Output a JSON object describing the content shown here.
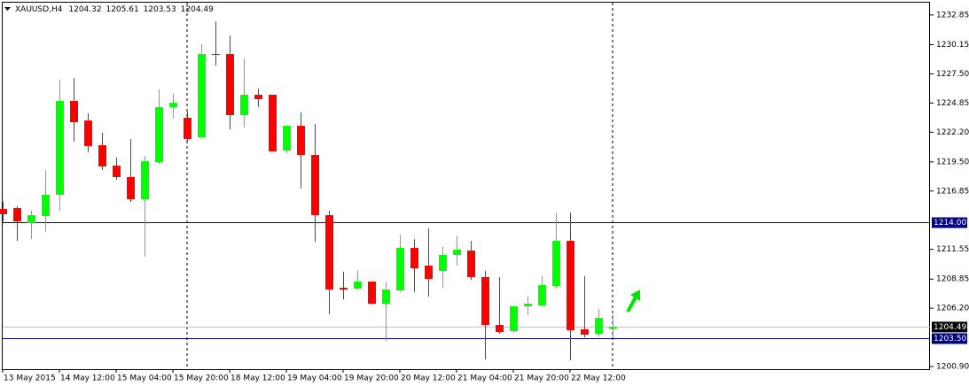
{
  "chart_data": {
    "type": "candlestick",
    "title": "XAUUSD,H4",
    "header_ohlc": [
      1204.32,
      1205.61,
      1203.53,
      1204.49
    ],
    "categories": [
      "13 May 2015",
      null,
      null,
      null,
      "14 May 12:00",
      null,
      null,
      null,
      "15 May 04:00",
      null,
      null,
      null,
      "15 May 20:00",
      null,
      null,
      null,
      "18 May 12:00",
      null,
      null,
      null,
      "19 May 04:00",
      null,
      null,
      null,
      "19 May 20:00",
      null,
      null,
      null,
      "20 May 12:00",
      null,
      null,
      null,
      "21 May 04:00",
      null,
      null,
      null,
      "21 May 20:00",
      null,
      null,
      null,
      "22 May 12:00",
      null,
      null,
      null
    ],
    "open": [
      1215.22,
      1215.3,
      1213.93,
      1214.58,
      1216.51,
      1225.04,
      1223.26,
      1221.01,
      1219.16,
      1218.12,
      1216.11,
      1219.48,
      1224.47,
      1223.51,
      1221.74,
      1229.3,
      1229.3,
      1223.75,
      1225.6,
      1225.6,
      1220.53,
      1222.78,
      1220.13,
      1214.66,
      1208.06,
      1207.98,
      1208.62,
      1206.61,
      1207.82,
      1211.68,
      1210.07,
      1209.59,
      1211.04,
      1211.44,
      1209.03,
      1204.68,
      1204.12,
      1206.37,
      1206.45,
      1208.22,
      1212.32,
      1204.28,
      1203.88,
      1204.32
    ],
    "high": [
      1215.86,
      1215.46,
      1215.06,
      1218.76,
      1226.97,
      1227.13,
      1223.91,
      1222.14,
      1219.89,
      1221.58,
      1220.05,
      1226.08,
      1225.68,
      1224.07,
      1230.18,
      1232.28,
      1230.99,
      1228.9,
      1226.16,
      1225.6,
      1222.78,
      1223.99,
      1222.94,
      1215.06,
      1209.51,
      1209.67,
      1208.62,
      1208.62,
      1212.89,
      1212.48,
      1213.45,
      1211.76,
      1212.81,
      1212.32,
      1209.59,
      1209.03,
      1206.37,
      1207.26,
      1209.11,
      1214.9,
      1214.9,
      1209.11,
      1206.13,
      1205.61
    ],
    "low": [
      1214.09,
      1212.32,
      1212.48,
      1213.13,
      1215.06,
      1221.33,
      1220.37,
      1218.76,
      1217.88,
      1215.86,
      1210.88,
      1219.32,
      1223.43,
      1221.33,
      1221.74,
      1228.25,
      1222.46,
      1222.62,
      1224.47,
      1220.45,
      1220.29,
      1217.07,
      1212.24,
      1205.65,
      1207.01,
      1207.82,
      1206.53,
      1203.23,
      1207.66,
      1207.66,
      1207.26,
      1208.06,
      1210.07,
      1208.78,
      1201.54,
      1203.88,
      1203.96,
      1205.57,
      1206.45,
      1207.98,
      1201.46,
      1203.55,
      1203.64,
      1203.53
    ],
    "close": [
      1214.74,
      1214.09,
      1214.66,
      1216.51,
      1225.04,
      1223.1,
      1220.93,
      1219.08,
      1218.12,
      1216.11,
      1219.56,
      1224.47,
      1224.87,
      1221.58,
      1229.3,
      1229.22,
      1223.75,
      1225.6,
      1225.2,
      1220.45,
      1222.78,
      1220.13,
      1214.66,
      1207.9,
      1207.9,
      1208.62,
      1206.61,
      1207.9,
      1211.68,
      1209.83,
      1208.86,
      1211.04,
      1211.52,
      1209.03,
      1204.68,
      1204.04,
      1206.37,
      1206.61,
      1208.3,
      1212.32,
      1204.2,
      1203.8,
      1205.32,
      1204.49
    ],
    "up_color": "#00ff00",
    "down_color": "#ff0000",
    "ylim": [
      1200.66,
      1233.97
    ],
    "yticks": [
      1232.85,
      1230.15,
      {
        "value": 1227.5,
        "label": "1227.50"
      },
      1224.85,
      {
        "value": 1222.2,
        "label": "1222.20"
      },
      {
        "value": 1219.5,
        "label": "1219.50"
      },
      1216.85,
      1211.55,
      1208.85,
      {
        "value": 1206.2,
        "label": "1206.20"
      },
      {
        "value": 1200.9,
        "label": "1200.90"
      }
    ],
    "hlines": [
      {
        "value": 1214,
        "label": "1214.00"
      },
      {
        "value": 1203.5,
        "label": "1203.50"
      }
    ],
    "hline_color": "#000080",
    "bid": 1204.49
  }
}
